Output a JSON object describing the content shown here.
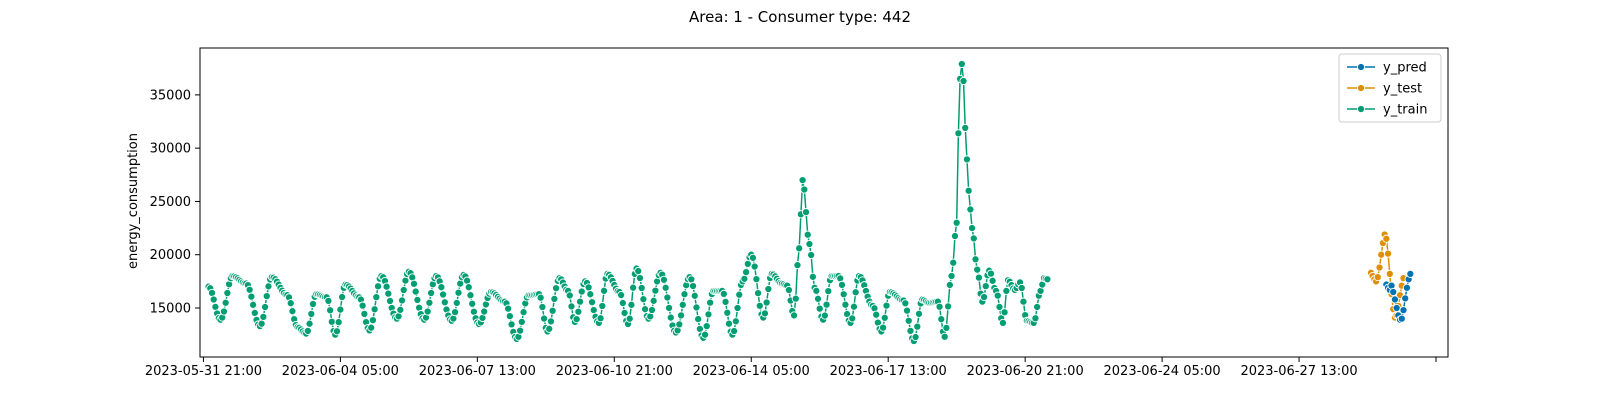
{
  "chart_data": {
    "type": "line",
    "title": "Area: 1 - Consumer type: 442",
    "xlabel": "",
    "ylabel": "energy_consumption",
    "xlim": [
      "2023-05-31 19:00",
      "2023-07-01 04:00"
    ],
    "ylim": [
      10400,
      39400
    ],
    "yticks": [
      15000,
      20000,
      25000,
      30000,
      35000
    ],
    "xticks": [
      "2023-05-31 21:00",
      "2023-06-04 05:00",
      "2023-06-07 13:00",
      "2023-06-10 21:00",
      "2023-06-14 05:00",
      "2023-06-17 13:00",
      "2023-06-20 21:00",
      "2023-06-24 05:00",
      "2023-06-27 13:00"
    ],
    "grid": false,
    "legend_position": "top-right",
    "series": [
      {
        "name": "y_pred",
        "color": "#0173b2",
        "x_start": "2023-06-29 16:00",
        "step_hours": 1,
        "values": [
          17200,
          16900,
          16700,
          17100,
          16500,
          15800,
          15000,
          14300,
          13900,
          14000,
          14800,
          15900,
          16900,
          17700,
          18200
        ]
      },
      {
        "name": "y_test",
        "color": "#de8f05",
        "x_start": "2023-06-29 07:00",
        "step_hours": 1,
        "values": [
          18300,
          18000,
          17700,
          17500,
          17900,
          18800,
          20000,
          21100,
          21900,
          21500,
          20100,
          18200,
          16300,
          14900,
          14100,
          14300,
          15200,
          16200,
          17100,
          17800
        ]
      },
      {
        "name": "y_train",
        "color": "#029e73",
        "x_start": "2023-06-01 00:00",
        "step_hours": 1,
        "anchors": [
          [
            0,
            17000
          ],
          [
            7,
            13900
          ],
          [
            14,
            18000
          ],
          [
            22,
            17300
          ],
          [
            30,
            13300
          ],
          [
            37,
            17900
          ],
          [
            46,
            16200
          ],
          [
            52,
            13200
          ],
          [
            57,
            12600
          ],
          [
            63,
            16300
          ],
          [
            69,
            16000
          ],
          [
            74,
            12500
          ],
          [
            80,
            17200
          ],
          [
            88,
            16000
          ],
          [
            94,
            12900
          ],
          [
            101,
            18000
          ],
          [
            110,
            14000
          ],
          [
            117,
            18400
          ],
          [
            126,
            13900
          ],
          [
            133,
            18000
          ],
          [
            142,
            13800
          ],
          [
            149,
            18100
          ],
          [
            158,
            13500
          ],
          [
            165,
            16500
          ],
          [
            173,
            15600
          ],
          [
            180,
            12100
          ],
          [
            187,
            16200
          ],
          [
            193,
            16300
          ],
          [
            198,
            12800
          ],
          [
            205,
            17800
          ],
          [
            210,
            16600
          ],
          [
            214,
            13700
          ],
          [
            220,
            17500
          ],
          [
            228,
            13600
          ],
          [
            233,
            18200
          ],
          [
            240,
            16500
          ],
          [
            245,
            13500
          ],
          [
            250,
            18700
          ],
          [
            257,
            14000
          ],
          [
            264,
            18300
          ],
          [
            273,
            12700
          ],
          [
            281,
            17900
          ],
          [
            289,
            12200
          ],
          [
            295,
            16600
          ],
          [
            300,
            16600
          ],
          [
            306,
            12500
          ],
          [
            312,
            17500
          ],
          [
            317,
            20000
          ],
          [
            324,
            14100
          ],
          [
            329,
            18200
          ],
          [
            335,
            17300
          ],
          [
            338,
            17100
          ],
          [
            342,
            14300
          ],
          [
            345,
            20600
          ],
          [
            347,
            27000
          ],
          [
            351,
            21000
          ],
          [
            354,
            16900
          ],
          [
            359,
            13900
          ],
          [
            364,
            18000
          ],
          [
            368,
            18000
          ],
          [
            375,
            13600
          ],
          [
            380,
            18000
          ],
          [
            388,
            15200
          ],
          [
            393,
            12800
          ],
          [
            398,
            16500
          ],
          [
            406,
            15700
          ],
          [
            412,
            11900
          ],
          [
            417,
            15800
          ],
          [
            421,
            15500
          ],
          [
            426,
            15600
          ],
          [
            430,
            12300
          ],
          [
            434,
            18000
          ],
          [
            437,
            23000
          ],
          [
            438,
            31400
          ],
          [
            439,
            36500
          ],
          [
            440,
            37900
          ],
          [
            441,
            36300
          ],
          [
            442,
            31900
          ],
          [
            444,
            26000
          ],
          [
            446,
            22500
          ],
          [
            449,
            18600
          ],
          [
            452,
            15600
          ],
          [
            456,
            18500
          ],
          [
            460,
            16600
          ],
          [
            464,
            13600
          ],
          [
            467,
            17600
          ],
          [
            471,
            16700
          ],
          [
            474,
            17400
          ],
          [
            478,
            13800
          ],
          [
            482,
            13600
          ],
          [
            486,
            16600
          ],
          [
            488,
            17800
          ],
          [
            490,
            17700
          ]
        ]
      }
    ]
  }
}
